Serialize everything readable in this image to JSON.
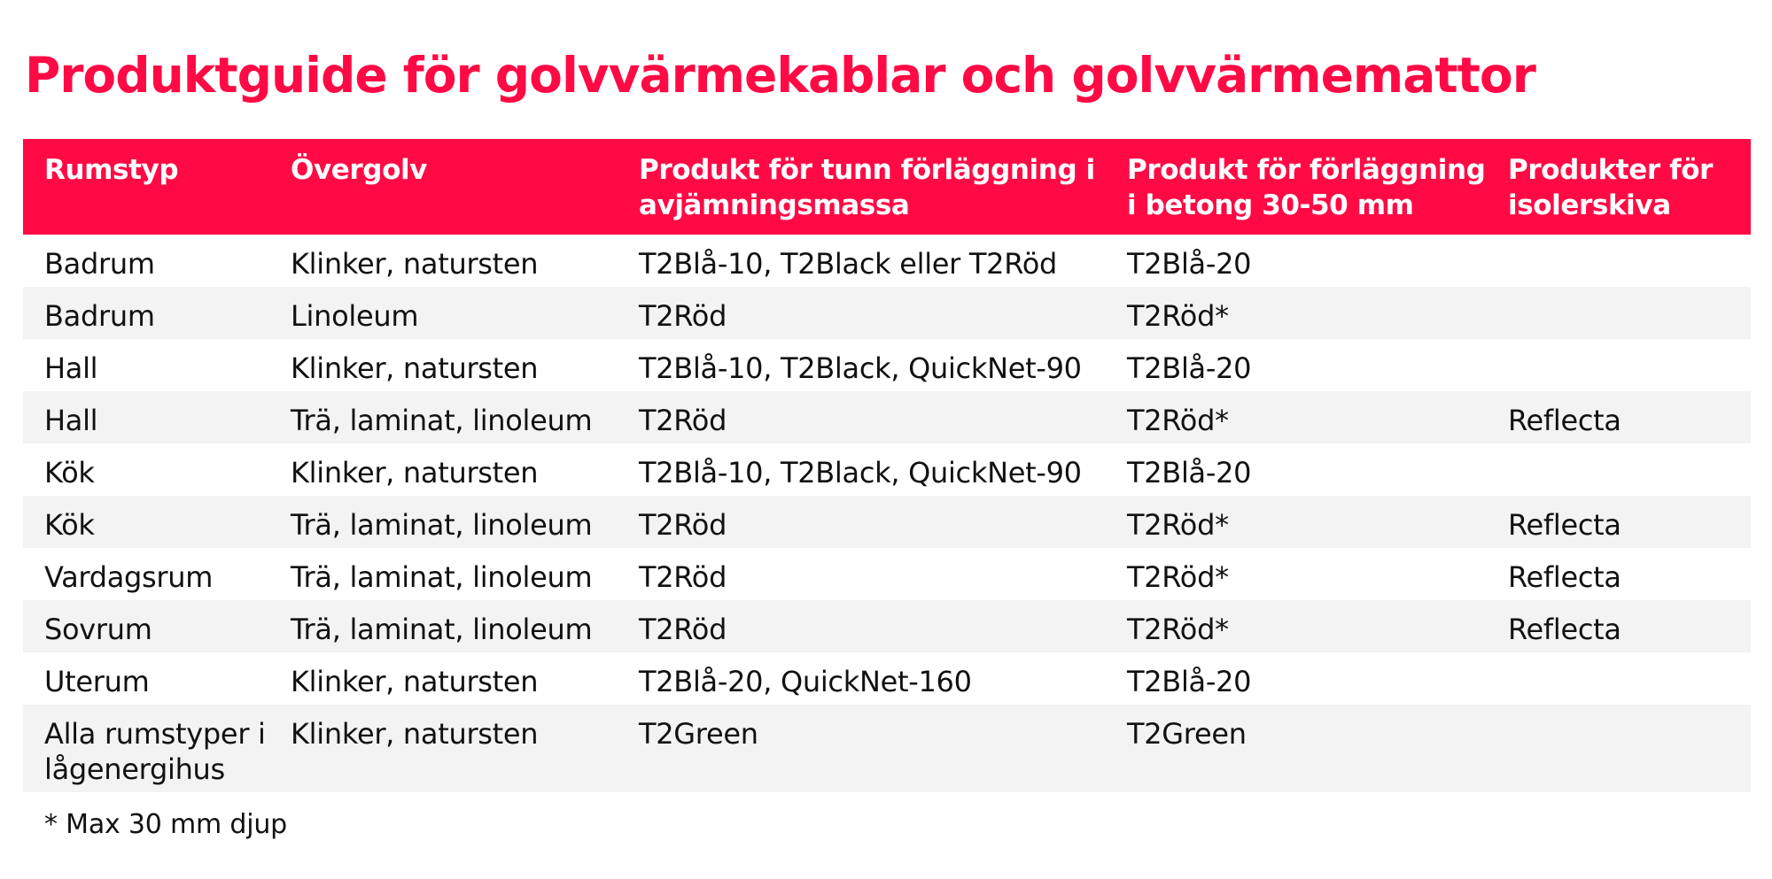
{
  "colors": {
    "accent": "#FF0A45",
    "row_stripe": "#F2F3F2",
    "text": "#111111",
    "header_text": "#FFFFFF"
  },
  "title": "Produktguide för golvvärmekablar och golvvärmemattor",
  "table": {
    "headers": [
      "Rumstyp",
      "Övergolv",
      "Produkt för tunn förläggning i avjämningsmassa",
      "Produkt för förläggning i betong 30-50 mm",
      "Produkter för isolerskiva"
    ],
    "rows": [
      [
        "Badrum",
        "Klinker, natursten",
        "T2Blå-10, T2Black eller T2Röd",
        "T2Blå-20",
        ""
      ],
      [
        "Badrum",
        "Linoleum",
        "T2Röd",
        "T2Röd*",
        ""
      ],
      [
        "Hall",
        "Klinker, natursten",
        "T2Blå-10, T2Black, QuickNet-90",
        "T2Blå-20",
        ""
      ],
      [
        "Hall",
        "Trä, laminat, linoleum",
        "T2Röd",
        "T2Röd*",
        "Reflecta"
      ],
      [
        "Kök",
        "Klinker, natursten",
        "T2Blå-10, T2Black, QuickNet-90",
        "T2Blå-20",
        ""
      ],
      [
        "Kök",
        "Trä, laminat, linoleum",
        "T2Röd",
        "T2Röd*",
        "Reflecta"
      ],
      [
        "Vardagsrum",
        "Trä, laminat, linoleum",
        "T2Röd",
        "T2Röd*",
        "Reflecta"
      ],
      [
        "Sovrum",
        "Trä, laminat, linoleum",
        "T2Röd",
        "T2Röd*",
        "Reflecta"
      ],
      [
        "Uterum",
        "Klinker, natursten",
        "T2Blå-20, QuickNet-160",
        "T2Blå-20",
        ""
      ],
      [
        "Alla rumstyper i lågenergihus",
        "Klinker, natursten",
        "T2Green",
        "T2Green",
        ""
      ]
    ]
  },
  "footnote": "* Max 30 mm djup"
}
